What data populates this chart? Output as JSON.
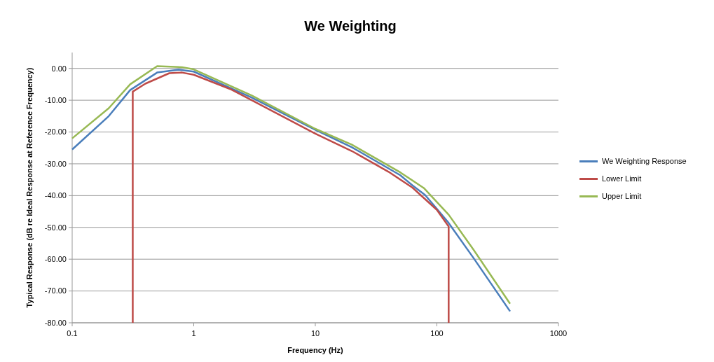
{
  "chart_data": {
    "type": "line",
    "title": "We Weighting",
    "xlabel": "Frequency (Hz)",
    "ylabel": "Typical Response (dB re Ideal Response at Reference Frequency)",
    "log": "x",
    "grid": "y",
    "legend": "right",
    "marker": "none",
    "line_style": "solid",
    "xlim": [
      0.1,
      1000
    ],
    "xticks": [
      0.1,
      1,
      10,
      100,
      1000
    ],
    "ylim": [
      -80,
      5
    ],
    "yticks": [
      {
        "value": 0,
        "label": "0.00"
      },
      {
        "value": -10,
        "label": "-10.00"
      },
      {
        "value": -20,
        "label": "-20.00"
      },
      {
        "value": -30,
        "label": "-30.00"
      },
      {
        "value": -40,
        "label": "-40.00"
      },
      {
        "value": -50,
        "label": "-50.00"
      },
      {
        "value": -60,
        "label": "-60.00"
      },
      {
        "value": -70,
        "label": "-70.00"
      },
      {
        "value": -80,
        "label": "-80.00"
      }
    ],
    "series": [
      {
        "name": "We Weighting Response",
        "color": "#4a7ebb",
        "x": [
          0.1,
          0.2,
          0.3,
          0.5,
          0.75,
          1,
          3,
          10,
          20,
          50,
          63,
          80,
          100,
          125,
          200,
          400
        ],
        "values": [
          -25.5,
          -15,
          -6.8,
          -1.3,
          -0.4,
          -1,
          -9.2,
          -19.3,
          -24.8,
          -33.6,
          -36.8,
          -39.8,
          -44.2,
          -48.6,
          -59.6,
          -76.4
        ]
      },
      {
        "name": "Lower Limit",
        "color": "#be4b48",
        "x": [
          0.315,
          0.315,
          0.4,
          0.63,
          0.8,
          1,
          2,
          3,
          10,
          20,
          40,
          63,
          100,
          125,
          125
        ],
        "values": [
          -80,
          -7.3,
          -4.8,
          -1.5,
          -1.3,
          -2,
          -6.5,
          -10,
          -20.5,
          -26,
          -32.5,
          -37.5,
          -44.5,
          -49.7,
          -80
        ]
      },
      {
        "name": "Upper Limit",
        "color": "#98b954",
        "x": [
          0.1,
          0.2,
          0.3,
          0.5,
          0.8,
          1,
          3,
          10,
          20,
          50,
          78,
          125,
          200,
          400
        ],
        "values": [
          -22,
          -12.5,
          -5,
          0.7,
          0.4,
          -0.3,
          -8.5,
          -19,
          -24,
          -32.7,
          -37.6,
          -46,
          -57,
          -74
        ]
      }
    ]
  }
}
